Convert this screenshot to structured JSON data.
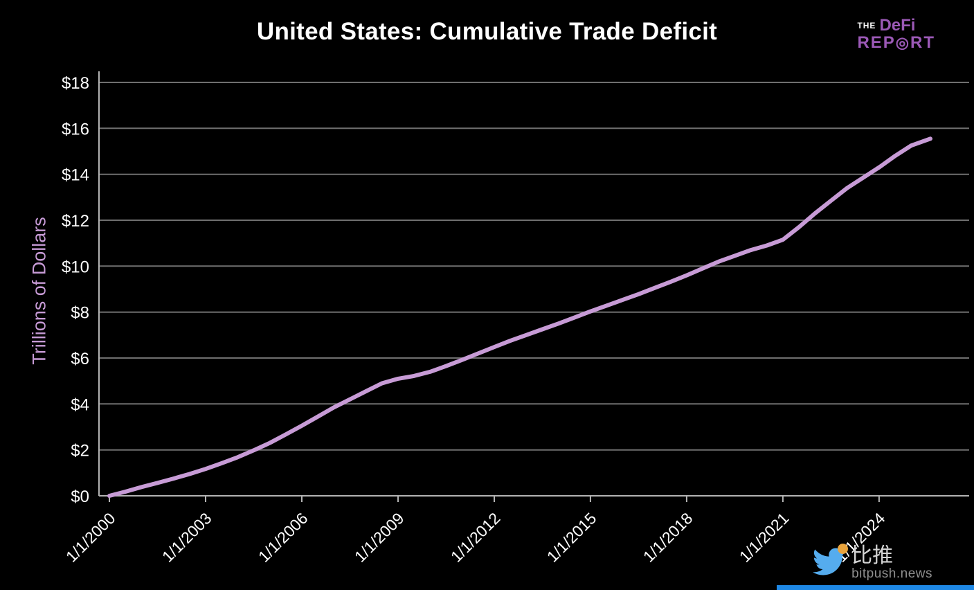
{
  "logo": {
    "the": "THE",
    "defi": "DeFi",
    "report_pre": "REP",
    "report_o": "◎",
    "report_post": "RT",
    "color": "#9b59b6"
  },
  "watermark": {
    "cjk": "比推",
    "domain": "bitpush.news",
    "bird_color": "#55acee",
    "coin_color": "#e8a33d",
    "bar_color": "#1e88e5"
  },
  "chart_data": {
    "type": "line",
    "title": "United States: Cumulative Trade Deficit",
    "ylabel": "Trillions of Dollars",
    "xlabel": "",
    "background_color": "#000000",
    "grid": "on",
    "legend": "none",
    "line_color": "#c79bd6",
    "grid_color": "#6f6f6f",
    "axis_color": "#b3b3b3",
    "text_color": "#ffffff",
    "ylabel_color": "#c79bd6",
    "ylim": [
      0,
      18
    ],
    "y_ticks": [
      0,
      2,
      4,
      6,
      8,
      10,
      12,
      14,
      16,
      18
    ],
    "y_tick_labels": [
      "$0",
      "$2",
      "$4",
      "$6",
      "$8",
      "$10",
      "$12",
      "$14",
      "$16",
      "$18"
    ],
    "x_ticks": [
      {
        "label": "1/1/2000",
        "year": 2000
      },
      {
        "label": "1/1/2003",
        "year": 2003
      },
      {
        "label": "1/1/2006",
        "year": 2006
      },
      {
        "label": "1/1/2009",
        "year": 2009
      },
      {
        "label": "1/1/2012",
        "year": 2012
      },
      {
        "label": "1/1/2015",
        "year": 2015
      },
      {
        "label": "1/1/2018",
        "year": 2018
      },
      {
        "label": "1/1/2021",
        "year": 2021
      },
      {
        "label": "1/1/2024",
        "year": 2024
      }
    ],
    "series": [
      {
        "name": "Cumulative Trade Deficit",
        "x": [
          2000,
          2000.5,
          2001,
          2001.5,
          2002,
          2002.5,
          2003,
          2003.5,
          2004,
          2004.5,
          2005,
          2005.5,
          2006,
          2006.5,
          2007,
          2007.5,
          2008,
          2008.5,
          2009,
          2009.5,
          2010,
          2010.5,
          2011,
          2011.5,
          2012,
          2012.5,
          2013,
          2013.5,
          2014,
          2014.5,
          2015,
          2015.5,
          2016,
          2016.5,
          2017,
          2017.5,
          2018,
          2018.5,
          2019,
          2019.5,
          2020,
          2020.5,
          2021,
          2021.5,
          2022,
          2022.5,
          2023,
          2023.5,
          2024,
          2024.5,
          2025,
          2025.6
        ],
        "values": [
          0,
          0.18,
          0.38,
          0.56,
          0.75,
          0.95,
          1.17,
          1.42,
          1.68,
          1.98,
          2.3,
          2.67,
          3.05,
          3.45,
          3.85,
          4.2,
          4.55,
          4.9,
          5.1,
          5.22,
          5.4,
          5.65,
          5.92,
          6.2,
          6.48,
          6.75,
          7.0,
          7.25,
          7.5,
          7.76,
          8.03,
          8.28,
          8.53,
          8.78,
          9.05,
          9.32,
          9.6,
          9.9,
          10.2,
          10.45,
          10.7,
          10.9,
          11.15,
          11.7,
          12.3,
          12.85,
          13.4,
          13.85,
          14.3,
          14.8,
          15.25,
          15.55
        ]
      }
    ]
  }
}
